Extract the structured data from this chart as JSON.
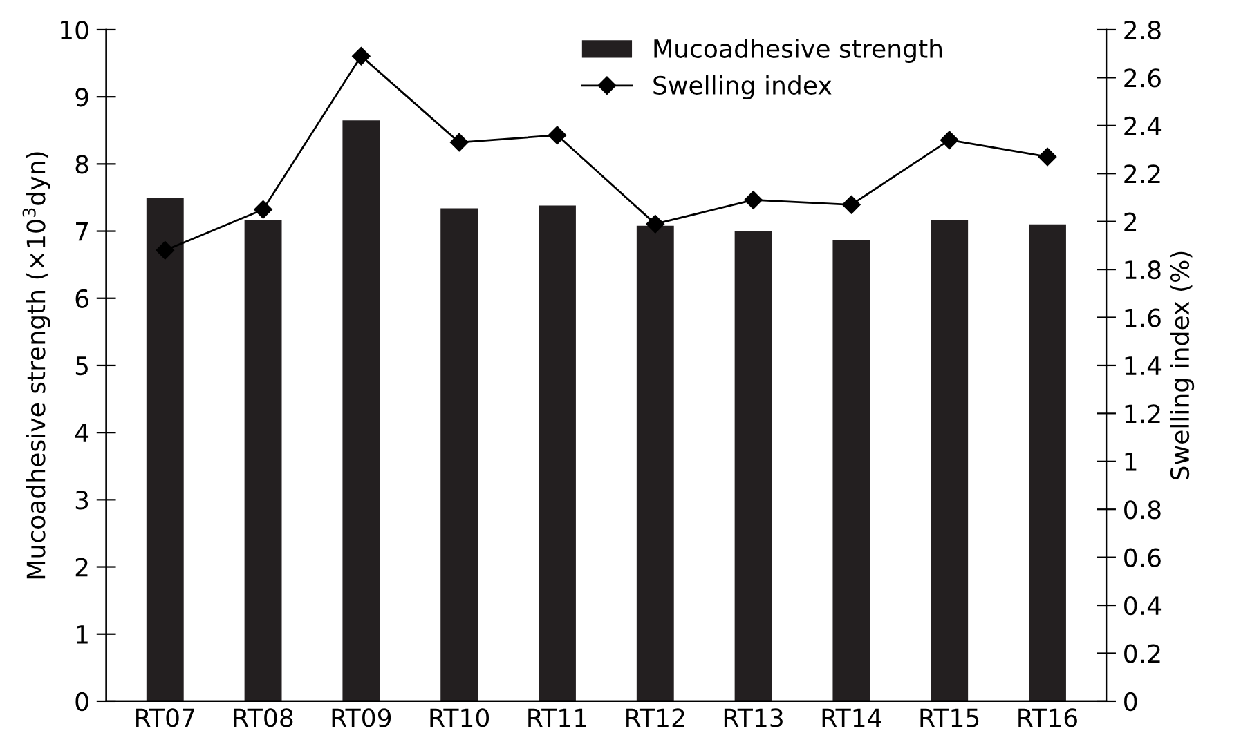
{
  "chart_data": {
    "type": "bar",
    "categories": [
      "RT07",
      "RT08",
      "RT09",
      "RT10",
      "RT11",
      "RT12",
      "RT13",
      "RT14",
      "RT15",
      "RT16"
    ],
    "ylabel": "Mucoadhesive strength (×10$^{3}$dyn)",
    "y2label": "Swelling index (%)",
    "series": [
      {
        "name": "Mucoadhesive strength",
        "color": "#231f20",
        "values": [
          7.5,
          7.17,
          8.65,
          7.34,
          7.38,
          7.08,
          7.0,
          6.87,
          7.17,
          7.1
        ]
      },
      {
        "name": "Swelling index",
        "type": "line",
        "axis": "y2",
        "color": "#000000",
        "marker": "diamond",
        "line_style": "solid",
        "values": [
          1.88,
          2.05,
          2.69,
          2.33,
          2.36,
          1.99,
          2.09,
          2.07,
          2.34,
          2.27
        ]
      }
    ],
    "ylim": [
      0,
      10
    ],
    "yticks": [
      0,
      1,
      2,
      3,
      4,
      5,
      6,
      7,
      8,
      9,
      10
    ],
    "y2lim": [
      0,
      2.8
    ],
    "y2ticks": [
      0,
      0.2,
      0.4,
      0.6,
      0.8,
      1,
      1.2,
      1.4,
      1.6,
      1.8,
      2,
      2.2,
      2.4,
      2.6,
      2.8
    ],
    "grid": false,
    "legend": "top right"
  }
}
